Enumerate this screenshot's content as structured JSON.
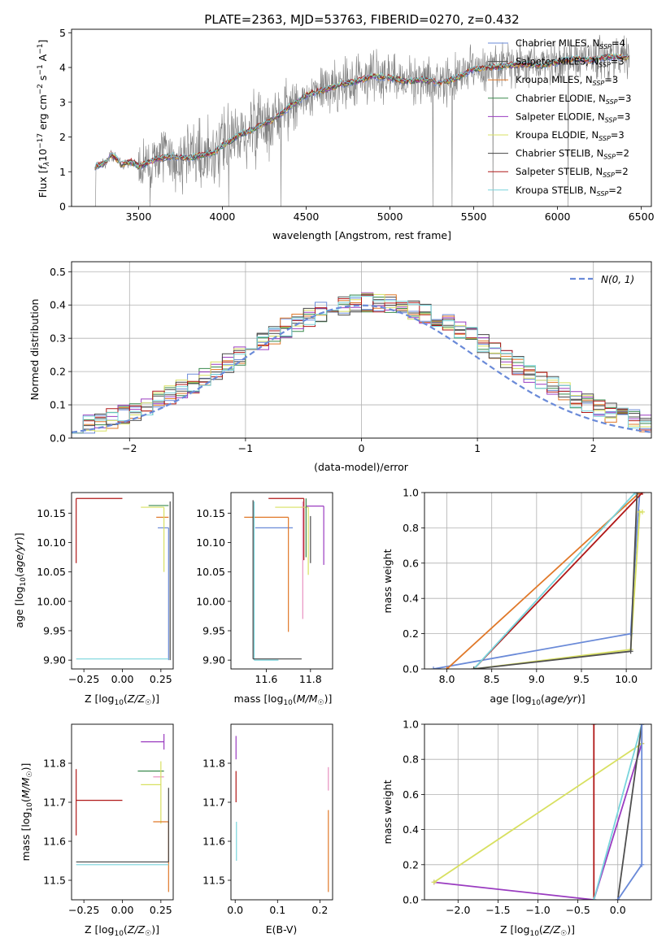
{
  "figure": {
    "title": "PLATE=2363, MJD=53763, FIBERID=0270, z=0.432"
  },
  "models": [
    {
      "name": "Chabrier MILES",
      "nssp": "4",
      "color": "#6a8ad8"
    },
    {
      "name": "Salpeter MILES",
      "nssp": "3",
      "color": "#4f4f4f"
    },
    {
      "name": "Kroupa MILES",
      "nssp": "3",
      "color": "#e07828"
    },
    {
      "name": "Chabrier ELODIE",
      "nssp": "3",
      "color": "#3a8a4e"
    },
    {
      "name": "Salpeter ELODIE",
      "nssp": "3",
      "color": "#9a3cc0"
    },
    {
      "name": "Kroupa ELODIE",
      "nssp": "3",
      "color": "#d8e060"
    },
    {
      "name": "Chabrier STELIB",
      "nssp": "2",
      "color": "#454545"
    },
    {
      "name": "Salpeter STELIB",
      "nssp": "2",
      "color": "#b01818"
    },
    {
      "name": "Kroupa STELIB",
      "nssp": "2",
      "color": "#78d4dc"
    }
  ],
  "chart_data": [
    {
      "id": "spectrum",
      "type": "line",
      "title": "PLATE=2363, MJD=53763, FIBERID=0270, z=0.432",
      "xlabel": "wavelength [Angstrom, rest frame]",
      "ylabel": "Flux [f_λ 10^-17 erg cm^-2 s^-1 A^-1]",
      "xlim": [
        3100,
        6560
      ],
      "ylim": [
        0,
        5.1
      ],
      "xticks": [
        3500,
        4000,
        4500,
        5000,
        5500,
        6000,
        6500
      ],
      "yticks": [
        0,
        1,
        2,
        3,
        4,
        5
      ],
      "legend": "right",
      "data_series": {
        "name": "data",
        "color": "#808080",
        "x_range": [
          3230,
          6430
        ]
      },
      "model_continuum": {
        "x": [
          3240,
          3300,
          3340,
          3400,
          3450,
          3500,
          3600,
          3700,
          3800,
          3900,
          3950,
          4000,
          4100,
          4200,
          4300,
          4400,
          4500,
          4600,
          4700,
          4800,
          4900,
          5000,
          5100,
          5200,
          5300,
          5400,
          5500,
          5600,
          5700,
          5800,
          5900,
          6000,
          6100,
          6200,
          6300,
          6420
        ],
        "y": [
          1.15,
          1.25,
          1.5,
          1.2,
          1.3,
          1.15,
          1.35,
          1.45,
          1.4,
          1.5,
          1.55,
          1.75,
          2.05,
          2.25,
          2.5,
          2.85,
          3.2,
          3.35,
          3.5,
          3.6,
          3.75,
          3.7,
          3.6,
          3.65,
          3.55,
          3.7,
          3.95,
          4.0,
          4.05,
          4.1,
          4.05,
          4.15,
          4.25,
          4.2,
          4.3,
          4.3
        ]
      }
    },
    {
      "id": "residual-histogram",
      "type": "line",
      "xlabel": "(data-model)/error",
      "ylabel": "Normed distribution",
      "xlim": [
        -2.5,
        2.5
      ],
      "ylim": [
        0,
        0.53
      ],
      "xticks": [
        -2,
        -1,
        0,
        1,
        2
      ],
      "yticks": [
        0.0,
        0.1,
        0.2,
        0.3,
        0.4,
        0.5
      ],
      "bin_width": 0.1,
      "reference": {
        "name": "N(0,1)",
        "sigma": 1.0,
        "mean": 0.0,
        "color": "#6a8ad8"
      },
      "grid": true,
      "legend": "top-right"
    },
    {
      "id": "age-vs-z",
      "type": "scatter",
      "xlabel": "Z [log10(Z/Z☉)]",
      "ylabel": "age [log10(age/yr)]",
      "xlim": [
        -0.33,
        0.33
      ],
      "ylim": [
        9.885,
        10.185
      ],
      "xticks": [
        -0.25,
        0.0,
        0.25
      ],
      "yticks": [
        9.9,
        9.95,
        10.0,
        10.05,
        10.1,
        10.15
      ],
      "errorbars": [
        {
          "model": 7,
          "x": -0.3,
          "y": 10.175,
          "xerr_right": 0.3,
          "yerr_down": 0.11
        },
        {
          "model": 0,
          "x": 0.3,
          "y": 10.125,
          "xerr_left": 0.07,
          "yerr_down": 0.225
        },
        {
          "model": 2,
          "x": 0.3,
          "y": 10.143,
          "xerr_left": 0.08
        },
        {
          "model": 5,
          "x": 0.27,
          "y": 10.16,
          "xerr_left": 0.15,
          "yerr_down": 0.11
        },
        {
          "model": 3,
          "x": 0.3,
          "y": 10.163,
          "xerr_left": 0.13
        },
        {
          "model": 8,
          "x": 0.3,
          "y": 9.902,
          "xerr_left": 0.6
        },
        {
          "model": 6,
          "x": 0.31,
          "y": 9.9,
          "yerr_up": 0.27
        }
      ]
    },
    {
      "id": "age-vs-mass",
      "type": "scatter",
      "xlabel": "mass [log10(M/M☉)]",
      "ylabel": "",
      "xlim": [
        11.44,
        11.9
      ],
      "ylim": [
        9.885,
        10.185
      ],
      "xticks": [
        11.6,
        11.8
      ],
      "yticks": [
        9.9,
        9.95,
        10.0,
        10.05,
        10.1,
        10.15
      ],
      "errorbars": [
        {
          "model": 0,
          "x": 11.72,
          "y": 10.125,
          "xerr_left": 0.17
        },
        {
          "model": 2,
          "x": 11.7,
          "y": 10.143,
          "xerr_left": 0.2,
          "yerr_down": 0.195
        },
        {
          "model": 7,
          "x": 11.77,
          "y": 10.175,
          "xerr_left": 0.16,
          "yerr_down": 0.105
        },
        {
          "model": 4,
          "x": 11.86,
          "y": 10.162,
          "xerr_left": 0.08,
          "yerr_down": 0.1
        },
        {
          "model": 5,
          "x": 11.79,
          "y": 10.16,
          "xerr_left": 0.15,
          "yerr_down": 0.115
        },
        {
          "model": 8,
          "x": 11.545,
          "y": 9.9,
          "xerr_right": 0.11,
          "yerr_up": 0.27
        },
        {
          "model": 6,
          "x": 11.54,
          "y": 9.902,
          "xerr_right": 0.22,
          "yerr_up": 0.27
        },
        {
          "model": 3,
          "x": 11.78,
          "y": 10.175,
          "yerr_down": 0.1
        },
        {
          "model": 1,
          "x": 11.8,
          "y": 10.145,
          "yerr_down": 0.08
        },
        {
          "model": 8,
          "x": 11.765,
          "y": 10.17,
          "yerr_down": 0.2,
          "color_override": "#e890c0"
        }
      ]
    },
    {
      "id": "mass-weight-vs-age",
      "type": "line",
      "xlabel": "age [log10(age/yr)]",
      "ylabel": "mass weight",
      "xlim": [
        7.75,
        10.28
      ],
      "ylim": [
        0,
        1.0
      ],
      "xticks": [
        8.0,
        8.5,
        9.0,
        9.5,
        10.0
      ],
      "yticks": [
        0.0,
        0.2,
        0.4,
        0.6,
        0.8,
        1.0
      ],
      "grid": true,
      "series": [
        {
          "model": 0,
          "x": [
            7.85,
            10.05,
            10.12,
            10.15
          ],
          "y": [
            0.0,
            0.2,
            0.8,
            1.0
          ]
        },
        {
          "model": 2,
          "x": [
            8.0,
            10.15
          ],
          "y": [
            0.0,
            1.0
          ]
        },
        {
          "model": 7,
          "x": [
            8.3,
            10.18
          ],
          "y": [
            0.0,
            1.0
          ]
        },
        {
          "model": 8,
          "x": [
            8.3,
            10.1
          ],
          "y": [
            0.0,
            1.0
          ]
        },
        {
          "model": 5,
          "x": [
            8.3,
            10.05,
            10.15,
            10.18
          ],
          "y": [
            0.0,
            0.11,
            0.89,
            0.89
          ]
        },
        {
          "model": 1,
          "x": [
            8.3,
            10.05,
            10.12
          ],
          "y": [
            0.0,
            0.1,
            1.0
          ]
        }
      ]
    },
    {
      "id": "mass-vs-z",
      "type": "scatter",
      "xlabel": "Z [log10(Z/Z☉)]",
      "ylabel": "mass [log10(M/M☉)]",
      "xlim": [
        -0.33,
        0.33
      ],
      "ylim": [
        11.45,
        11.9
      ],
      "xticks": [
        -0.25,
        0.0,
        0.25
      ],
      "yticks": [
        11.5,
        11.6,
        11.7,
        11.8
      ],
      "errorbars": [
        {
          "model": 7,
          "x": -0.3,
          "y": 11.705,
          "xerr_right": 0.3,
          "yerr_up": 0.08,
          "yerr_down": 0.09
        },
        {
          "model": 4,
          "x": 0.27,
          "y": 11.855,
          "xerr_left": 0.15,
          "yerr_up": 0.02,
          "yerr_down": 0.02
        },
        {
          "model": 3,
          "x": 0.27,
          "y": 11.78,
          "xerr_left": 0.17
        },
        {
          "model": 8,
          "x": 0.27,
          "y": 11.765,
          "xerr_left": 0.07,
          "color_override": "#e890c0"
        },
        {
          "model": 5,
          "x": 0.25,
          "y": 11.745,
          "xerr_left": 0.13,
          "yerr_up": 0.06,
          "yerr_down": 0.1
        },
        {
          "model": 2,
          "x": 0.3,
          "y": 11.65,
          "xerr_left": 0.1,
          "yerr_down": 0.18
        },
        {
          "model": 6,
          "x": 0.3,
          "y": 11.547,
          "xerr_left": 0.6,
          "yerr_up": 0.19
        },
        {
          "model": 8,
          "x": 0.3,
          "y": 11.54,
          "xerr_left": 0.6
        }
      ]
    },
    {
      "id": "mass-vs-ebv",
      "type": "scatter",
      "xlabel": "E(B-V)",
      "ylabel": "",
      "xlim": [
        -0.01,
        0.23
      ],
      "ylim": [
        11.45,
        11.9
      ],
      "xticks": [
        0.0,
        0.1,
        0.2
      ],
      "yticks": [
        11.5,
        11.6,
        11.7,
        11.8
      ],
      "errorbars": [
        {
          "model": 4,
          "x": 0.002,
          "y": 11.85,
          "yerr_up": 0.02,
          "yerr_down": 0.04
        },
        {
          "model": 7,
          "x": 0.002,
          "y": 11.75,
          "yerr_up": 0.03,
          "yerr_down": 0.05
        },
        {
          "model": 8,
          "x": 0.003,
          "y": 11.6,
          "yerr_up": 0.05,
          "yerr_down": 0.05
        },
        {
          "model": 2,
          "x": 0.22,
          "y": 11.6,
          "yerr_up": 0.08,
          "yerr_down": 0.13
        },
        {
          "model": 8,
          "x": 0.22,
          "y": 11.75,
          "yerr_up": 0.04,
          "yerr_down": 0.02,
          "color_override": "#e890c0"
        }
      ]
    },
    {
      "id": "mass-weight-vs-z",
      "type": "line",
      "xlabel": "Z [log10(Z/Z☉)]",
      "ylabel": "mass weight",
      "xlim": [
        -2.42,
        0.42
      ],
      "ylim": [
        0,
        1.0
      ],
      "xticks": [
        -2.0,
        -1.5,
        -1.0,
        -0.5,
        0.0
      ],
      "yticks": [
        0.0,
        0.2,
        0.4,
        0.6,
        0.8,
        1.0
      ],
      "grid": true,
      "series": [
        {
          "model": 4,
          "x": [
            -2.3,
            -0.3,
            0.3,
            0.3
          ],
          "y": [
            0.1,
            0.0,
            0.89,
            1.0
          ]
        },
        {
          "model": 5,
          "x": [
            -2.3,
            0.3,
            0.3
          ],
          "y": [
            0.1,
            0.89,
            1.0
          ]
        },
        {
          "model": 7,
          "x": [
            -0.3,
            -0.3
          ],
          "y": [
            0.0,
            1.0
          ]
        },
        {
          "model": 8,
          "x": [
            -0.3,
            0.3
          ],
          "y": [
            0.0,
            1.0
          ]
        },
        {
          "model": 1,
          "x": [
            0.0,
            0.3
          ],
          "y": [
            0.0,
            1.0
          ]
        },
        {
          "model": 0,
          "x": [
            0.0,
            0.3,
            0.3
          ],
          "y": [
            0.0,
            0.2,
            1.0
          ]
        }
      ]
    }
  ],
  "text": {
    "s1_xlabel": "wavelength [Angstrom, rest frame]",
    "s2_xlabel": "(data-model)/error",
    "s2_ylabel": "Normed distribution",
    "s5_xlabel": "age  [log10(age/yr)]",
    "s5_ylabel": "mass weight",
    "s8_xlabel": "Z [log10(Z/Z☉)]",
    "s8_ylabel": "mass weight",
    "s7_xlabel": "E(B-V)",
    "legend_normal": "N(0, 1)"
  }
}
